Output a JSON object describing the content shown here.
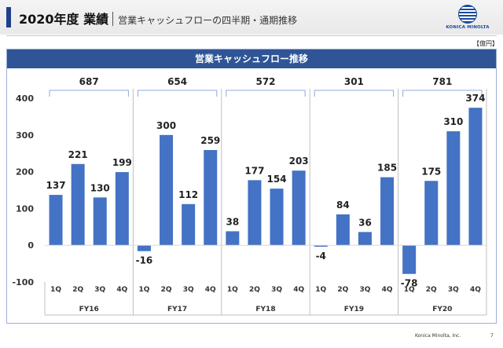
{
  "header": {
    "title_main": "2020年度 業績",
    "title_sub": "営業キャッシュフローの四半期・通期推移",
    "logo_text": "KONICA MINOLTA"
  },
  "unit_label": "【億円】",
  "footer": {
    "company": "Konica Minolta, Inc.",
    "page": "7"
  },
  "colors": {
    "bar": "#4472c4",
    "title_bg": "#2f5597",
    "accent": "#1e3f8f"
  },
  "chart_data": {
    "type": "bar",
    "title": "営業キャッシュフロー推移",
    "ylim": [
      -100,
      400
    ],
    "yticks": [
      -100,
      0,
      100,
      200,
      300,
      400
    ],
    "grid": false,
    "groups": [
      {
        "label": "FY16",
        "total": 687,
        "quarters": [
          "1Q",
          "2Q",
          "3Q",
          "4Q"
        ],
        "values": [
          137,
          221,
          130,
          199
        ]
      },
      {
        "label": "FY17",
        "total": 654,
        "quarters": [
          "1Q",
          "2Q",
          "3Q",
          "4Q"
        ],
        "values": [
          -16,
          300,
          112,
          259
        ]
      },
      {
        "label": "FY18",
        "total": 572,
        "quarters": [
          "1Q",
          "2Q",
          "3Q",
          "4Q"
        ],
        "values": [
          38,
          177,
          154,
          203
        ]
      },
      {
        "label": "FY19",
        "total": 301,
        "quarters": [
          "1Q",
          "2Q",
          "3Q",
          "4Q"
        ],
        "values": [
          -4,
          84,
          36,
          185
        ]
      },
      {
        "label": "FY20",
        "total": 781,
        "quarters": [
          "1Q",
          "2Q",
          "3Q",
          "4Q"
        ],
        "values": [
          -78,
          175,
          310,
          374
        ]
      }
    ]
  }
}
